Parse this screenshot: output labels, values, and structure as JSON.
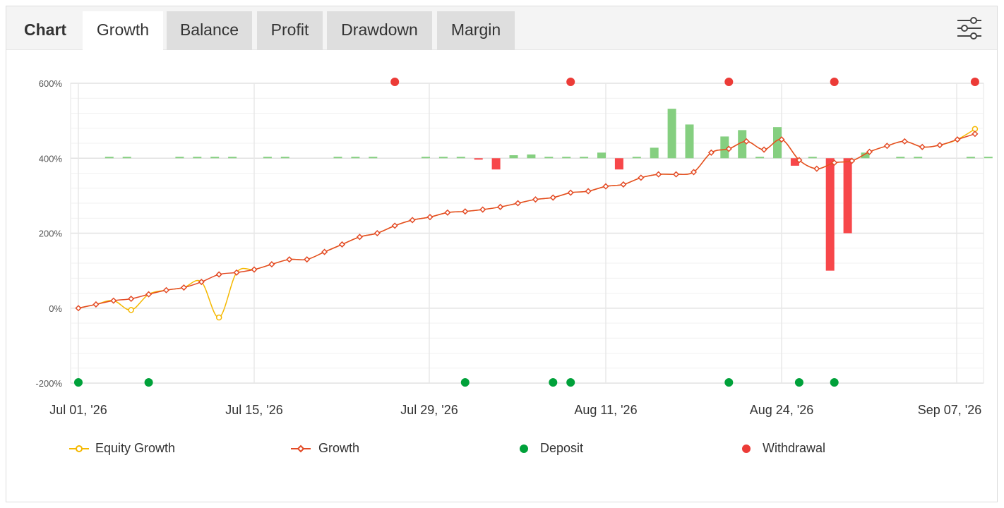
{
  "tabs": {
    "title": "Chart",
    "items": [
      "Growth",
      "Balance",
      "Profit",
      "Drawdown",
      "Margin"
    ],
    "active": "Growth"
  },
  "settings_icon": "sliders-icon",
  "colors": {
    "equity": "#f5b800",
    "growth": "#e34a25",
    "deposit": "#00a13a",
    "withdrawal": "#ec3b37",
    "bar_positive": "#85cf80",
    "bar_negative": "#f7474a"
  },
  "legend": {
    "equity": "Equity Growth",
    "growth": "Growth",
    "deposit": "Deposit",
    "withdrawal": "Withdrawal"
  },
  "chart_data": {
    "type": "line",
    "ylim": [
      -200,
      600
    ],
    "y_ticks": [
      "600%",
      "400%",
      "200%",
      "0%",
      "-200%"
    ],
    "x_ticks": [
      "Jul 01, '26",
      "Jul 15, '26",
      "Jul 29, '26",
      "Aug 11, '26",
      "Aug 24, '26",
      "Sep 07, '26"
    ],
    "series": [
      {
        "name": "Growth",
        "values": [
          0,
          10,
          20,
          25,
          37,
          48,
          55,
          70,
          90,
          95,
          103,
          117,
          130,
          130,
          150,
          170,
          190,
          200,
          220,
          235,
          243,
          255,
          258,
          263,
          270,
          280,
          290,
          295,
          308,
          312,
          325,
          330,
          348,
          357,
          357,
          363,
          415,
          425,
          445,
          423,
          450,
          395,
          372,
          388,
          393,
          417,
          433,
          445,
          430,
          435,
          450,
          465
        ]
      },
      {
        "name": "Equity Growth",
        "values": [
          0,
          10,
          20,
          -5,
          37,
          48,
          55,
          70,
          -25,
          95,
          103,
          117,
          130,
          130,
          150,
          170,
          190,
          200,
          220,
          235,
          243,
          255,
          258,
          263,
          270,
          280,
          290,
          295,
          308,
          312,
          325,
          330,
          348,
          357,
          357,
          363,
          415,
          425,
          445,
          423,
          450,
          395,
          372,
          388,
          393,
          417,
          433,
          445,
          430,
          435,
          450,
          478
        ]
      }
    ],
    "bars": [
      0,
      3,
      3,
      0,
      0,
      3,
      3,
      3,
      3,
      0,
      3,
      3,
      0,
      0,
      3,
      3,
      3,
      0,
      0,
      3,
      3,
      3,
      -2,
      -30,
      8,
      10,
      3,
      3,
      3,
      15,
      -30,
      3,
      28,
      132,
      90,
      0,
      58,
      75,
      3,
      83,
      -20,
      3,
      -300,
      -200,
      15,
      0,
      3,
      3,
      0,
      0,
      3,
      3
    ],
    "deposit_points": [
      0,
      4,
      22,
      27,
      28,
      37,
      41,
      43
    ],
    "withdrawal_points": [
      18,
      28,
      37,
      43,
      51
    ]
  }
}
